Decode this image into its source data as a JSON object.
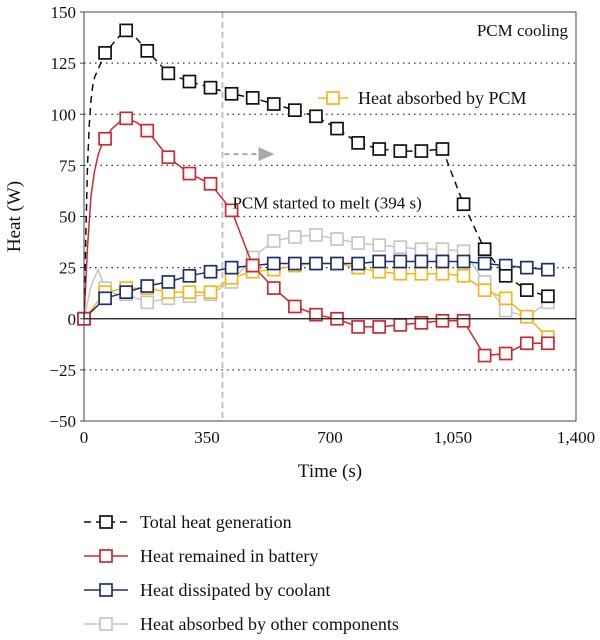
{
  "chart_data": {
    "type": "line",
    "title": "",
    "xlabel": "Time (s)",
    "ylabel": "Heat (W)",
    "xlim": [
      0,
      1400
    ],
    "ylim": [
      -50,
      150
    ],
    "xticks": [
      0,
      350,
      700,
      1050,
      1400
    ],
    "xtick_labels": [
      "0",
      "350",
      "700",
      "1,050",
      "1,400"
    ],
    "yticks": [
      -50,
      -25,
      0,
      25,
      50,
      75,
      100,
      125,
      150
    ],
    "ytick_labels": [
      "−50",
      "−25",
      "0",
      "25",
      "50",
      "75",
      "100",
      "125",
      "150"
    ],
    "grid": "horizontal dotted",
    "legend_position": "below",
    "annotations": {
      "corner_label": "PCM cooling",
      "melt_label": "PCM started to melt (394 s)",
      "melt_time": 394
    },
    "series": [
      {
        "name": "Total heat generation",
        "color": "#111111",
        "dash": true,
        "line_x": [
          0,
          5,
          10,
          15,
          20,
          25,
          30,
          40,
          50,
          60,
          80,
          100,
          120,
          150,
          180,
          240,
          300,
          360,
          420,
          480,
          540,
          600,
          660,
          720,
          780,
          840,
          900,
          960,
          1020,
          1080,
          1140,
          1200,
          1260,
          1320
        ],
        "line_y": [
          0,
          40,
          75,
          95,
          107,
          114,
          118,
          122,
          126,
          130,
          134,
          138,
          141,
          137,
          131,
          120,
          116,
          113,
          110,
          108,
          105,
          102,
          99,
          93,
          86,
          83,
          82,
          82,
          83,
          56,
          34,
          21,
          14,
          11
        ],
        "x": [
          60,
          120,
          180,
          240,
          300,
          360,
          420,
          480,
          540,
          600,
          660,
          720,
          780,
          840,
          900,
          960,
          1020,
          1080,
          1140,
          1200,
          1260,
          1320
        ],
        "y": [
          130,
          141,
          131,
          120,
          116,
          113,
          110,
          108,
          105,
          102,
          99,
          93,
          86,
          83,
          82,
          82,
          83,
          56,
          34,
          21,
          14,
          11
        ]
      },
      {
        "name": "Heat remained in battery",
        "color": "#cc2a33",
        "dash": false,
        "line_x": [
          0,
          10,
          20,
          30,
          40,
          50,
          60,
          80,
          100,
          120,
          150,
          180,
          240,
          300,
          360,
          420,
          480,
          540,
          600,
          660,
          720,
          780,
          840,
          900,
          960,
          1020,
          1080,
          1140,
          1200,
          1260,
          1320
        ],
        "line_y": [
          0,
          35,
          60,
          72,
          80,
          85,
          88,
          93,
          96,
          98,
          96,
          92,
          79,
          71,
          66,
          53,
          26,
          15,
          6,
          2,
          0,
          -4,
          -4,
          -3,
          -2,
          -1,
          -1,
          -18,
          -17,
          -12,
          -12
        ],
        "x": [
          0,
          60,
          120,
          180,
          240,
          300,
          360,
          420,
          480,
          540,
          600,
          660,
          720,
          780,
          840,
          900,
          960,
          1020,
          1080,
          1140,
          1200,
          1260,
          1320
        ],
        "y": [
          0,
          88,
          98,
          92,
          79,
          71,
          66,
          53,
          26,
          15,
          6,
          2,
          0,
          -4,
          -4,
          -3,
          -2,
          -1,
          -1,
          -18,
          -17,
          -12,
          -12
        ]
      },
      {
        "name": "Heat dissipated by coolant",
        "color": "#1f2f6e",
        "dash": false,
        "line_x": [
          0,
          60,
          120,
          180,
          240,
          300,
          360,
          420,
          480,
          540,
          600,
          660,
          720,
          780,
          840,
          900,
          960,
          1020,
          1080,
          1140,
          1200,
          1260,
          1320
        ],
        "line_y": [
          0,
          10,
          13,
          16,
          18,
          21,
          23,
          25,
          26,
          27,
          27,
          27,
          27,
          27,
          28,
          28,
          28,
          28,
          28,
          27,
          26,
          25,
          24
        ],
        "x": [
          0,
          60,
          120,
          180,
          240,
          300,
          360,
          420,
          480,
          540,
          600,
          660,
          720,
          780,
          840,
          900,
          960,
          1020,
          1080,
          1140,
          1200,
          1260,
          1320
        ],
        "y": [
          0,
          10,
          13,
          16,
          18,
          21,
          23,
          25,
          26,
          27,
          27,
          27,
          27,
          27,
          28,
          28,
          28,
          28,
          28,
          27,
          26,
          25,
          24
        ]
      },
      {
        "name": "Heat absorbed by other components",
        "color": "#c6c6c6",
        "dash": false,
        "line_x": [
          0,
          20,
          40,
          60,
          90,
          120,
          150,
          180,
          240,
          300,
          360,
          420,
          480,
          540,
          600,
          660,
          720,
          780,
          840,
          900,
          960,
          1020,
          1080,
          1140,
          1200,
          1260,
          1320
        ],
        "line_y": [
          0,
          16,
          24,
          15,
          12,
          12,
          10,
          8,
          10,
          11,
          12,
          18,
          30,
          38,
          40,
          41,
          39,
          37,
          36,
          35,
          34,
          34,
          33,
          18,
          4,
          1,
          8
        ],
        "x": [
          0,
          60,
          120,
          180,
          240,
          300,
          360,
          420,
          480,
          540,
          600,
          660,
          720,
          780,
          840,
          900,
          960,
          1020,
          1080,
          1140,
          1200,
          1260,
          1320
        ],
        "y": [
          0,
          15,
          12,
          8,
          10,
          11,
          12,
          18,
          30,
          38,
          40,
          41,
          39,
          37,
          36,
          35,
          34,
          34,
          33,
          18,
          4,
          1,
          8
        ]
      },
      {
        "name": "Heat absorbed by PCM",
        "color": "#f2b81a",
        "dash": false,
        "line_x": [
          0,
          60,
          120,
          180,
          240,
          300,
          360,
          420,
          480,
          540,
          600,
          660,
          720,
          780,
          840,
          900,
          960,
          1020,
          1080,
          1140,
          1200,
          1260,
          1320
        ],
        "line_y": [
          0,
          13,
          15,
          15,
          13,
          13,
          13,
          20,
          23,
          24,
          26,
          27,
          27,
          25,
          23,
          22,
          22,
          22,
          21,
          14,
          10,
          1,
          -9
        ],
        "x": [
          0,
          60,
          120,
          180,
          240,
          300,
          360,
          420,
          480,
          540,
          600,
          660,
          720,
          780,
          840,
          900,
          960,
          1020,
          1080,
          1140,
          1200,
          1260,
          1320
        ],
        "y": [
          0,
          13,
          15,
          15,
          13,
          13,
          13,
          20,
          23,
          24,
          26,
          27,
          27,
          25,
          23,
          22,
          22,
          22,
          21,
          14,
          10,
          1,
          -9
        ]
      }
    ],
    "legend_order": [
      0,
      1,
      2,
      3
    ],
    "inset_legend_series": 4
  }
}
